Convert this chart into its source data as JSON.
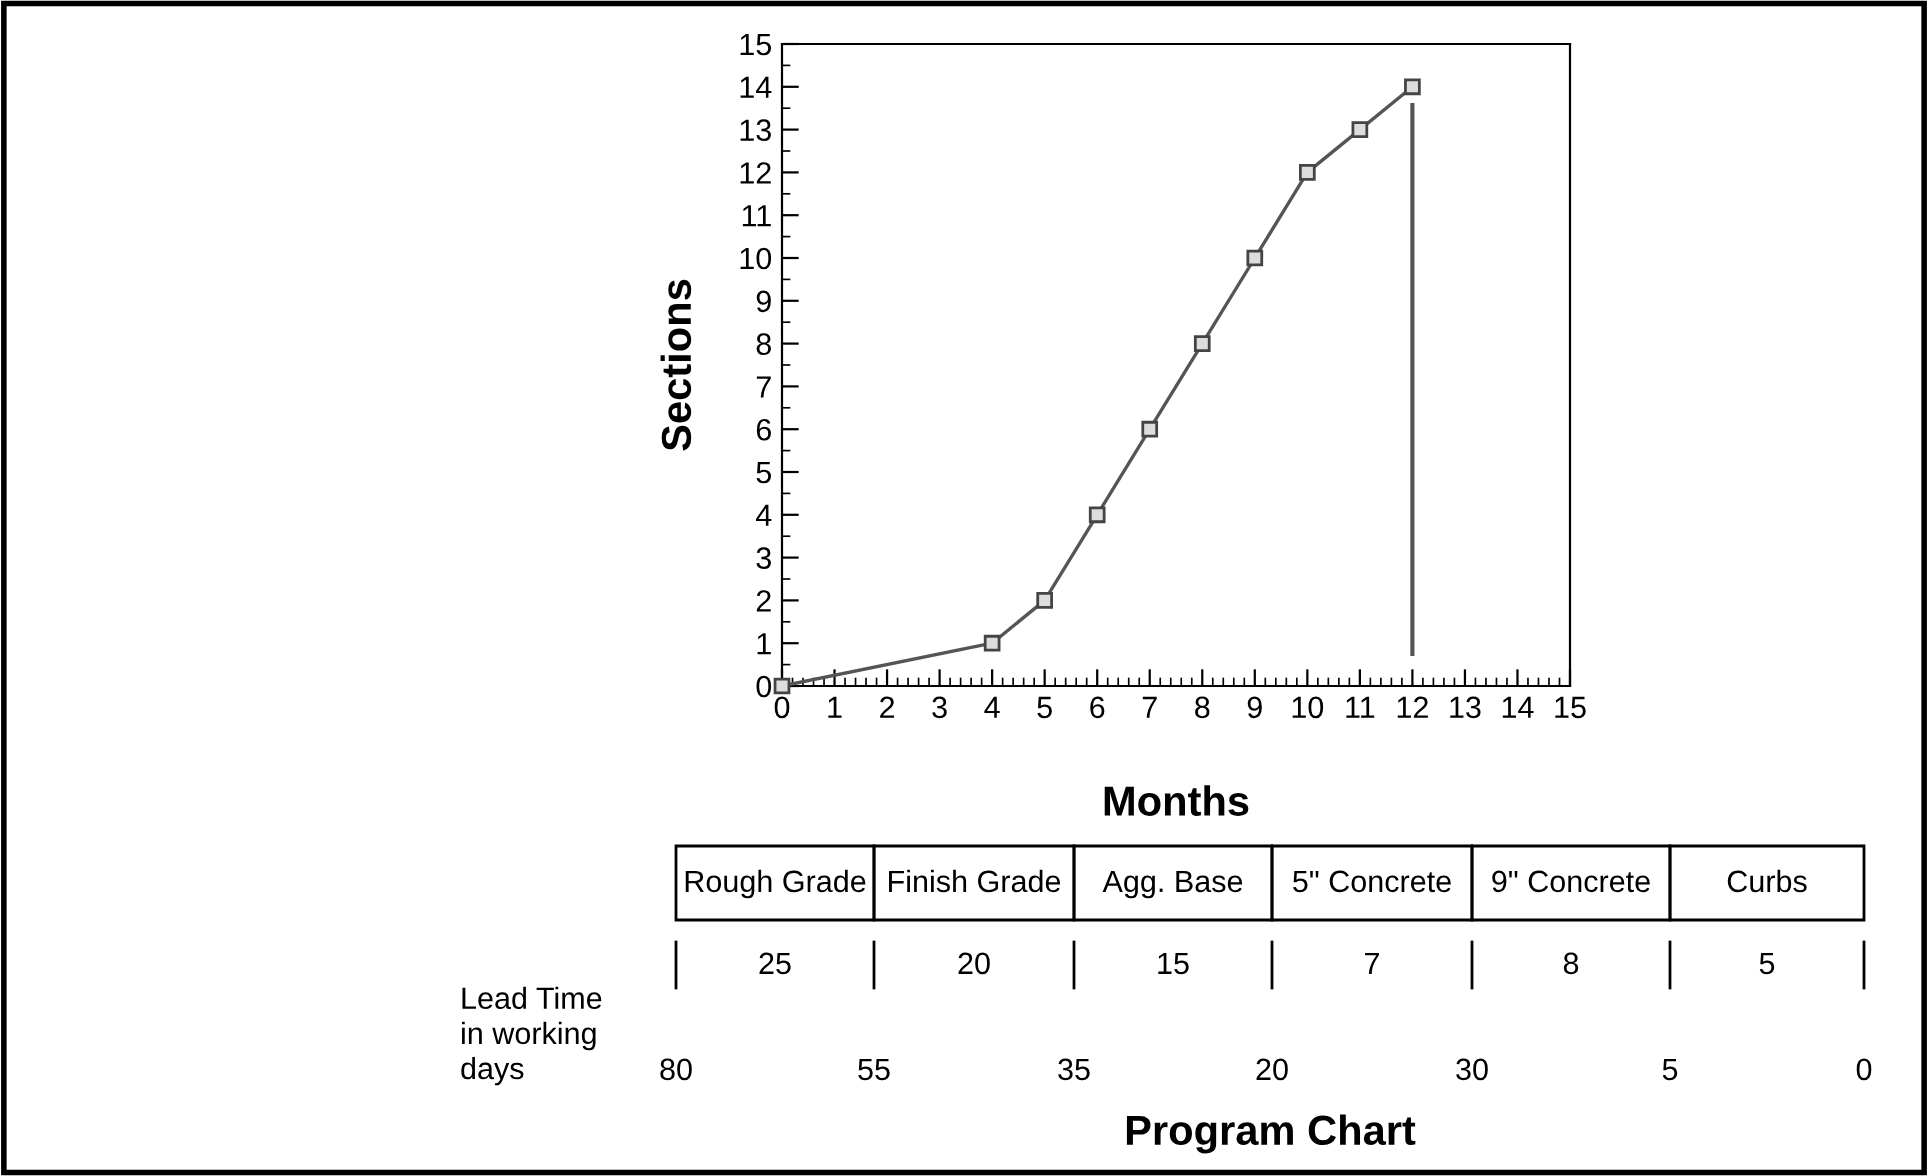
{
  "chart_data": {
    "type": "line",
    "title": "Program Chart",
    "xlabel": "Months",
    "ylabel": "Sections",
    "x": [
      0,
      4,
      5,
      6,
      7,
      8,
      9,
      10,
      11,
      12
    ],
    "series": [
      {
        "color": "#555555",
        "values": [
          0,
          1,
          2,
          4,
          6,
          8,
          10,
          12,
          13,
          14
        ]
      }
    ],
    "marker": "square",
    "line_style": "solid",
    "grid": false,
    "xlim": [
      0,
      15
    ],
    "ylim": [
      0,
      15
    ],
    "xticks": [
      0,
      1,
      2,
      3,
      4,
      5,
      6,
      7,
      8,
      9,
      10,
      11,
      12,
      13,
      14,
      15
    ],
    "yticks": [
      0,
      1,
      2,
      3,
      4,
      5,
      6,
      7,
      8,
      9,
      10,
      11,
      12,
      13,
      14,
      15
    ],
    "ref_lines": [
      {
        "axis": "x",
        "value": 12,
        "color": "#555555"
      }
    ],
    "annotations": [
      "Rough Grade",
      "Finish Grade",
      "Agg. Base",
      "5\" Concrete",
      "9\" Concrete",
      "Curbs",
      "25",
      "20",
      "15",
      "7",
      "8",
      "5",
      "80",
      "55",
      "35",
      "20",
      "30",
      "5",
      "0",
      "Lead Time\nin working\ndays"
    ]
  }
}
